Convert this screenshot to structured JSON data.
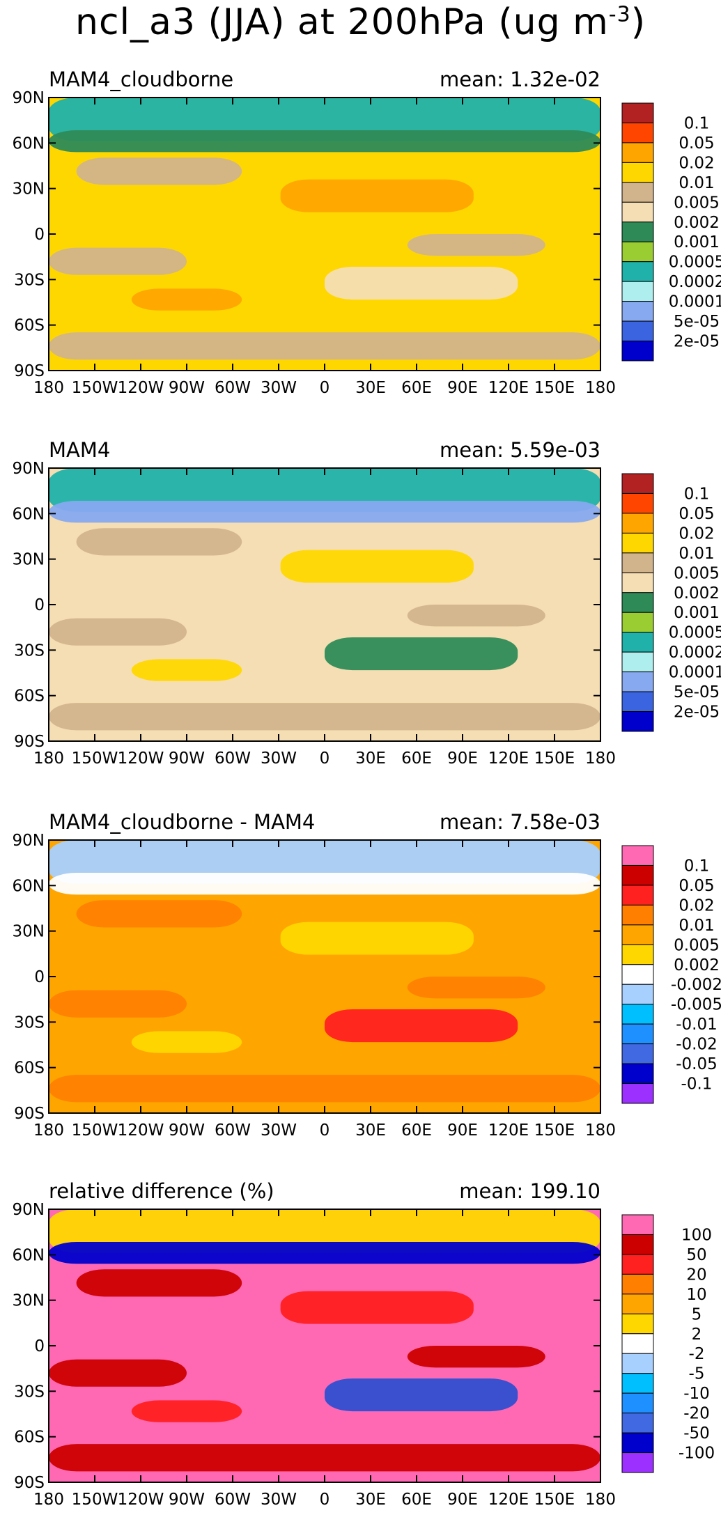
{
  "title": {
    "main": "ncl_a3 (JJA) at 200hPa (ug m",
    "sup": "-3",
    "end": ")"
  },
  "chart_data": [
    {
      "type": "heatmap",
      "title": "MAM4_cloudborne",
      "mean_text": "mean: 1.32e-02",
      "colorbar_labels": [
        "0.1",
        "0.05",
        "0.02",
        "0.01",
        "0.005",
        "0.002",
        "0.001",
        "0.0005",
        "0.0002",
        "0.0001",
        "5e-05",
        "2e-05"
      ],
      "colors": [
        "#b22222",
        "#ff4500",
        "#ffa500",
        "#ffd700",
        "#d2b48c",
        "#f5deb3",
        "#2e8b57",
        "#9acd32",
        "#20b2aa",
        "#afeeee",
        "#87a9f0",
        "#3a64e0",
        "#0000cd"
      ],
      "fill": [
        "#ffd700",
        "#d2b48c",
        "#ffa500",
        "#f5deb3",
        "#2e8b57",
        "#20b2aa"
      ]
    },
    {
      "type": "heatmap",
      "title": "MAM4",
      "mean_text": "mean: 5.59e-03",
      "colorbar_labels": [
        "0.1",
        "0.05",
        "0.02",
        "0.01",
        "0.005",
        "0.002",
        "0.001",
        "0.0005",
        "0.0002",
        "0.0001",
        "5e-05",
        "2e-05"
      ],
      "colors": [
        "#b22222",
        "#ff4500",
        "#ffa500",
        "#ffd700",
        "#d2b48c",
        "#f5deb3",
        "#2e8b57",
        "#9acd32",
        "#20b2aa",
        "#afeeee",
        "#87a9f0",
        "#3a64e0",
        "#0000cd"
      ],
      "fill": [
        "#f5deb3",
        "#d2b48c",
        "#ffd700",
        "#2e8b57",
        "#87a9f0",
        "#20b2aa"
      ]
    },
    {
      "type": "heatmap",
      "title": "MAM4_cloudborne - MAM4",
      "mean_text": "mean: 7.58e-03",
      "colorbar_labels": [
        "0.1",
        "0.05",
        "0.02",
        "0.01",
        "0.005",
        "0.002",
        "-0.002",
        "-0.005",
        "-0.01",
        "-0.02",
        "-0.05",
        "-0.1"
      ],
      "colors": [
        "#ff69b4",
        "#cd0000",
        "#ff2020",
        "#ff7f00",
        "#ffa500",
        "#ffd700",
        "#ffffff",
        "#a8d0ff",
        "#00bfff",
        "#1e90ff",
        "#4169e1",
        "#0000cd",
        "#9b30ff"
      ],
      "fill": [
        "#ffa500",
        "#ff7f00",
        "#ffd700",
        "#ff2020",
        "#ffffff",
        "#a8d0ff"
      ]
    },
    {
      "type": "heatmap",
      "title": "relative difference (%)",
      "mean_text": "mean: 199.10",
      "colorbar_labels": [
        "100",
        "50",
        "20",
        "10",
        "5",
        "2",
        "-2",
        "-5",
        "-10",
        "-20",
        "-50",
        "-100"
      ],
      "colors": [
        "#ff69b4",
        "#cd0000",
        "#ff2020",
        "#ff7f00",
        "#ffa500",
        "#ffd700",
        "#ffffff",
        "#a8d0ff",
        "#00bfff",
        "#1e90ff",
        "#4169e1",
        "#0000cd",
        "#9b30ff"
      ],
      "fill": [
        "#ff69b4",
        "#cd0000",
        "#ff2020",
        "#2f4fd0",
        "#0000cd",
        "#ffd700"
      ]
    }
  ],
  "axes": {
    "lat_ticks": [
      "90N",
      "60N",
      "30N",
      "0",
      "30S",
      "60S",
      "90S"
    ],
    "lon_ticks": [
      "180",
      "150W",
      "120W",
      "90W",
      "60W",
      "30W",
      "0",
      "30E",
      "60E",
      "90E",
      "120E",
      "150E",
      "180"
    ]
  }
}
